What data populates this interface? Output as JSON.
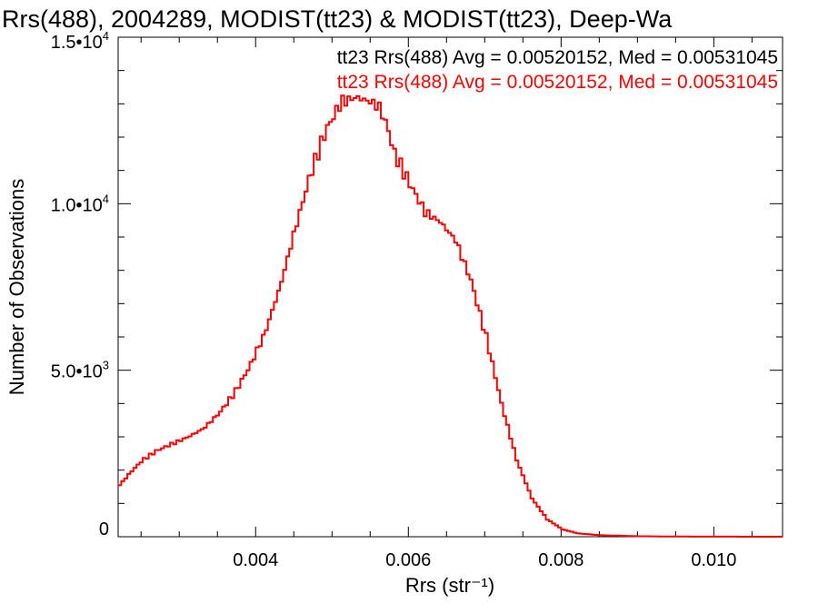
{
  "chart_data": {
    "type": "line",
    "step": true,
    "title": "Rrs(488), 2004289, MODIST(tt23) & MODIST(tt23), Deep-Wa",
    "xlabel": "Rrs (str⁻¹)",
    "ylabel": "Number of Observations",
    "xlim": [
      0.0022,
      0.0109
    ],
    "ylim": [
      0,
      15000
    ],
    "x_ticks": [
      {
        "value": 0.004,
        "label": "0.004"
      },
      {
        "value": 0.006,
        "label": "0.006"
      },
      {
        "value": 0.008,
        "label": "0.008"
      },
      {
        "value": 0.01,
        "label": "0.010"
      }
    ],
    "x_minor_step": 0.0005,
    "y_ticks": [
      {
        "value": 0,
        "base": "0",
        "exp": ""
      },
      {
        "value": 5000,
        "base": "5.0•10",
        "exp": "3"
      },
      {
        "value": 10000,
        "base": "1.0•10",
        "exp": "4"
      },
      {
        "value": 15000,
        "base": "1.5•10",
        "exp": "4"
      }
    ],
    "y_minor_step": 1000,
    "grid": false,
    "colors": {
      "background": "#ffffff",
      "axes": "#000000",
      "black_series": "#000000",
      "red_series": "#ff0000"
    },
    "annotations": [
      {
        "text": "tt23 Rrs(488) Avg = 0.00520152, Med = 0.00531045",
        "color": "#000000"
      },
      {
        "text": "tt23 Rrs(488) Avg = 0.00520152, Med = 0.00531045",
        "color": "#ff0000"
      }
    ],
    "series": [
      {
        "color": "#ff0000",
        "points": [
          [
            0.0022,
            1550
          ],
          [
            0.00235,
            1950
          ],
          [
            0.0025,
            2300
          ],
          [
            0.0027,
            2600
          ],
          [
            0.0029,
            2800
          ],
          [
            0.0031,
            3000
          ],
          [
            0.0033,
            3250
          ],
          [
            0.0035,
            3700
          ],
          [
            0.0037,
            4300
          ],
          [
            0.0039,
            5100
          ],
          [
            0.0041,
            6100
          ],
          [
            0.0043,
            7500
          ],
          [
            0.0045,
            9250
          ],
          [
            0.0047,
            10900
          ],
          [
            0.0049,
            12200
          ],
          [
            0.0051,
            13050
          ],
          [
            0.0053,
            13200
          ],
          [
            0.0055,
            13050
          ],
          [
            0.0056,
            12900
          ],
          [
            0.0057,
            12350
          ],
          [
            0.0058,
            11500
          ],
          [
            0.006,
            10600
          ],
          [
            0.0062,
            9750
          ],
          [
            0.0064,
            9450
          ],
          [
            0.0066,
            8900
          ],
          [
            0.0068,
            7700
          ],
          [
            0.007,
            6000
          ],
          [
            0.0072,
            4000
          ],
          [
            0.0074,
            2300
          ],
          [
            0.0076,
            1150
          ],
          [
            0.0078,
            520
          ],
          [
            0.008,
            220
          ],
          [
            0.0082,
            100
          ],
          [
            0.0085,
            45
          ],
          [
            0.009,
            15
          ],
          [
            0.0095,
            5
          ],
          [
            0.01,
            2
          ],
          [
            0.0109,
            0
          ]
        ]
      }
    ]
  }
}
